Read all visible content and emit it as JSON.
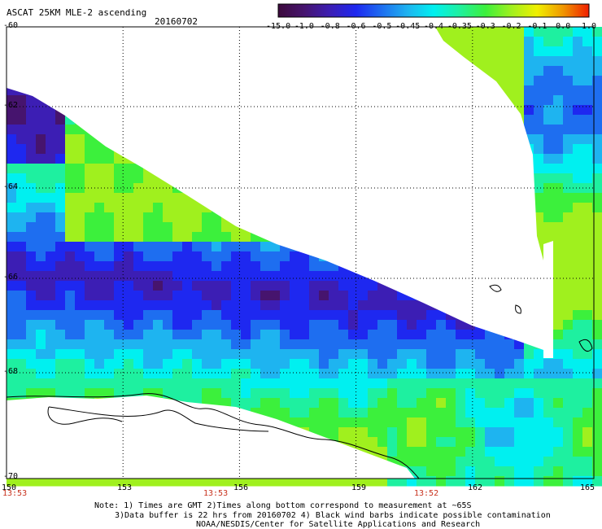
{
  "header": {
    "title": "ASCAT 25KM MLE-2 ascending",
    "date": "20160702"
  },
  "colorbar": {
    "labels": [
      "-15.0",
      "-1.0",
      "-0.8",
      "-0.6",
      "-0.5",
      "-0.45",
      "-0.4",
      "-0.35",
      "-0.3",
      "-0.2",
      "-0.1",
      "0.0",
      "1.0"
    ],
    "colors": [
      "#3c0a3c",
      "#46146e",
      "#3c1eb4",
      "#1e28f0",
      "#1e6ef0",
      "#1eb4f0",
      "#00f0f0",
      "#1ef0a0",
      "#3cf03c",
      "#a0f01e",
      "#f0f000",
      "#f09600",
      "#f01e00"
    ]
  },
  "axes": {
    "lat_labels": [
      "-60",
      "-62",
      "-64",
      "-66",
      "-68",
      "-70"
    ],
    "lon_labels": [
      "150",
      "153",
      "156",
      "159",
      "162",
      "165"
    ],
    "time_labels": [
      "13:53",
      "13:53",
      "13:52"
    ]
  },
  "notes": {
    "line1": "Note: 1) Times are GMT 2)Times along bottom correspond to measurement at ~65S",
    "line2": "3)Data buffer is 22 hrs from 20160702 4) Black wind barbs indicate possible contamination",
    "line3": "NOAA/NESDIS/Center for Satellite Applications and Research"
  }
}
